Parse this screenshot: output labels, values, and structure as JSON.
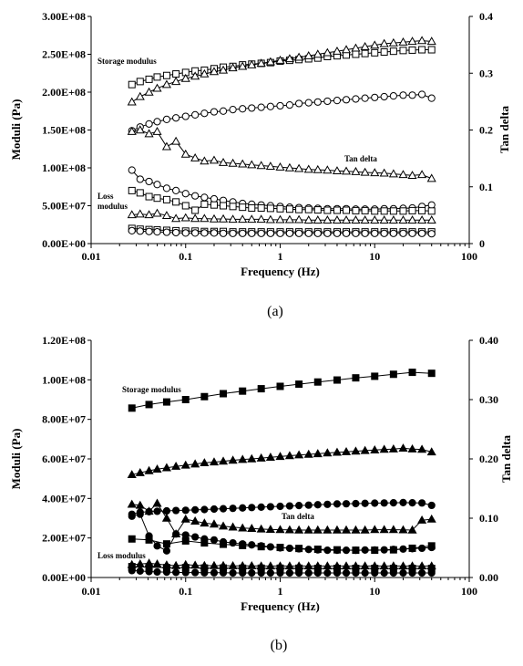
{
  "chart_data": [
    {
      "type": "scatter",
      "caption": "(a)",
      "xlabel": "Frequency (Hz)",
      "ylabel_left": "Moduli (Pa)",
      "ylabel_right": "Tan delta",
      "x_scale": "log",
      "xlim": [
        0.01,
        100
      ],
      "ylim_left": [
        0,
        300000000
      ],
      "ylim_right": [
        0,
        0.4
      ],
      "x_ticks": [
        "0.01",
        "0.1",
        "1",
        "10",
        "100"
      ],
      "y_left_ticks": [
        "0.00E+00",
        "5.00E+07",
        "1.00E+08",
        "1.50E+08",
        "2.00E+08",
        "2.50E+08",
        "3.00E+08"
      ],
      "y_right_ticks": [
        "0",
        "0.1",
        "0.2",
        "0.3",
        "0.4"
      ],
      "grid": false,
      "annotations": [
        "Storage modulus",
        "Tan delta",
        "Loss",
        "modulus"
      ],
      "x": [
        0.027,
        0.033,
        0.041,
        0.05,
        0.063,
        0.079,
        0.1,
        0.126,
        0.158,
        0.2,
        0.25,
        0.316,
        0.4,
        0.5,
        0.63,
        0.79,
        1.0,
        1.26,
        1.58,
        2.0,
        2.5,
        3.16,
        4.0,
        5.0,
        6.3,
        7.9,
        10.0,
        12.6,
        15.8,
        20.0,
        25.0,
        31.6,
        40.0
      ],
      "series": [
        {
          "axis": "left",
          "marker": "square-open",
          "line": true,
          "values": [
            210000000,
            214000000,
            217000000,
            220000000,
            222000000,
            224000000,
            226000000,
            228000000,
            229000000,
            231000000,
            233000000,
            234000000,
            236000000,
            237000000,
            238000000,
            239000000,
            241000000,
            242000000,
            243000000,
            244000000,
            245000000,
            247000000,
            248000000,
            249000000,
            250000000,
            251000000,
            252000000,
            253000000,
            254000000,
            255000000,
            255500000,
            256000000,
            256000000
          ]
        },
        {
          "axis": "left",
          "marker": "triangle-open",
          "line": true,
          "values": [
            187000000,
            194000000,
            200000000,
            205000000,
            210000000,
            214000000,
            218000000,
            221000000,
            224000000,
            227000000,
            229000000,
            232000000,
            234000000,
            236000000,
            238000000,
            240000000,
            242000000,
            244000000,
            246000000,
            248000000,
            250000000,
            252000000,
            254000000,
            256000000,
            258000000,
            260000000,
            262000000,
            264000000,
            265000000,
            266000000,
            267000000,
            268000000,
            267000000
          ]
        },
        {
          "axis": "left",
          "marker": "circle-open",
          "line": true,
          "values": [
            149000000,
            154000000,
            158000000,
            161000000,
            164000000,
            166000000,
            168000000,
            170000000,
            172000000,
            174000000,
            175000000,
            177000000,
            178000000,
            179000000,
            180000000,
            181000000,
            182000000,
            183000000,
            185000000,
            186000000,
            187000000,
            188000000,
            189000000,
            190000000,
            191000000,
            192000000,
            193000000,
            194000000,
            195000000,
            196000000,
            196000000,
            197000000,
            192000000
          ]
        },
        {
          "axis": "left",
          "marker": "triangle-open",
          "line": true,
          "values": [
            148000000,
            150000000,
            145000000,
            148000000,
            128000000,
            135000000,
            118000000,
            113000000,
            109000000,
            110000000,
            107000000,
            106000000,
            105000000,
            104000000,
            103000000,
            102000000,
            101000000,
            100000000,
            99000000,
            98000000,
            97500000,
            97000000,
            96000000,
            95500000,
            95000000,
            94000000,
            93500000,
            93000000,
            92000000,
            91000000,
            90000000,
            91000000,
            86000000
          ]
        },
        {
          "axis": "left",
          "marker": "circle-open",
          "line": true,
          "values": [
            97000000,
            85000000,
            82000000,
            78000000,
            73000000,
            70000000,
            66000000,
            63000000,
            61000000,
            59000000,
            57000000,
            55000000,
            53000000,
            52000000,
            51000000,
            50000000,
            49000000,
            48000000,
            47500000,
            47000000,
            46500000,
            46000000,
            46000000,
            46000000,
            45500000,
            45500000,
            45500000,
            46000000,
            46000000,
            46500000,
            47000000,
            49000000,
            51000000
          ]
        },
        {
          "axis": "left",
          "marker": "square-open",
          "line": true,
          "values": [
            70000000,
            67000000,
            62000000,
            60000000,
            58000000,
            55000000,
            50000000,
            44000000,
            52000000,
            51000000,
            50000000,
            49000000,
            48000000,
            47000000,
            47000000,
            46500000,
            46000000,
            45500000,
            45000000,
            45000000,
            44500000,
            44000000,
            44000000,
            44000000,
            43500000,
            43500000,
            43000000,
            43000000,
            43000000,
            43000000,
            43500000,
            43500000,
            43000000
          ]
        },
        {
          "axis": "left",
          "marker": "triangle-open",
          "line": true,
          "values": [
            38000000,
            39000000,
            38000000,
            40000000,
            37000000,
            33000000,
            34000000,
            33000000,
            33000000,
            32500000,
            32500000,
            32000000,
            32000000,
            32000000,
            32000000,
            31500000,
            31500000,
            31500000,
            31500000,
            31000000,
            31000000,
            31000000,
            31000000,
            31000000,
            31000000,
            31000000,
            31000000,
            31000000,
            31000000,
            31000000,
            31000000,
            31000000,
            31000000
          ]
        },
        {
          "axis": "left",
          "marker": "square-open",
          "line": true,
          "values": [
            20000000,
            19000000,
            18500000,
            18000000,
            17500000,
            17000000,
            16500000,
            16500000,
            16000000,
            16000000,
            16000000,
            15500000,
            15500000,
            15500000,
            15500000,
            15500000,
            15500000,
            15500000,
            15500000,
            15500000,
            15500000,
            15500000,
            15500000,
            15500000,
            15500000,
            15500000,
            15500000,
            15500000,
            15500000,
            15500000,
            15500000,
            15500000,
            15500000
          ]
        },
        {
          "axis": "left",
          "marker": "circle-open",
          "line": true,
          "values": [
            17000000,
            16500000,
            16000000,
            15500000,
            15000000,
            14500000,
            14000000,
            14000000,
            14000000,
            14000000,
            13500000,
            13500000,
            13500000,
            13500000,
            13500000,
            13500000,
            13500000,
            13500000,
            13500000,
            13500000,
            13500000,
            13500000,
            13500000,
            13500000,
            13500000,
            13500000,
            13500000,
            13500000,
            13500000,
            13500000,
            13500000,
            13500000,
            13000000
          ]
        }
      ]
    },
    {
      "type": "scatter",
      "caption": "(b)",
      "xlabel": "Frequency (Hz)",
      "ylabel_left": "Moduli (Pa)",
      "ylabel_right": "Tan delta",
      "x_scale": "log",
      "xlim": [
        0.01,
        100
      ],
      "ylim_left": [
        0,
        120000000
      ],
      "ylim_right": [
        0,
        0.4
      ],
      "x_ticks": [
        "0.01",
        "0.1",
        "1",
        "10",
        "100"
      ],
      "y_left_ticks": [
        "0.00E+00",
        "2.00E+07",
        "4.00E+07",
        "6.00E+07",
        "8.00E+07",
        "1.00E+08",
        "1.20E+08"
      ],
      "y_right_ticks": [
        "0.00",
        "0.10",
        "0.20",
        "0.30",
        "0.40"
      ],
      "grid": false,
      "annotations": [
        "Storage modulus",
        "Tan delta",
        "Loss modulus"
      ],
      "x": [
        0.027,
        0.041,
        0.063,
        0.1,
        0.158,
        0.25,
        0.4,
        0.63,
        1.0,
        1.58,
        2.5,
        4.0,
        6.3,
        10.0,
        15.8,
        25.0,
        40.0
      ],
      "x_dense": [
        0.027,
        0.033,
        0.041,
        0.05,
        0.063,
        0.079,
        0.1,
        0.126,
        0.158,
        0.2,
        0.25,
        0.316,
        0.4,
        0.5,
        0.63,
        0.79,
        1.0,
        1.26,
        1.58,
        2.0,
        2.5,
        3.16,
        4.0,
        5.0,
        6.3,
        7.9,
        10.0,
        12.6,
        15.8,
        20.0,
        25.0,
        31.6,
        40.0
      ],
      "series": [
        {
          "axis": "left",
          "marker": "square-filled",
          "line": true,
          "x_key": "x",
          "values": [
            85700000,
            87500000,
            88800000,
            90000000,
            91500000,
            93000000,
            94300000,
            95500000,
            96700000,
            97800000,
            98900000,
            99900000,
            101000000,
            101800000,
            102800000,
            103800000,
            103300000
          ]
        },
        {
          "axis": "left",
          "marker": "triangle-filled",
          "line": true,
          "x_key": "x_dense",
          "values": [
            52000000,
            53000000,
            54000000,
            54800000,
            55500000,
            56200000,
            56800000,
            57400000,
            58000000,
            58400000,
            58800000,
            59300000,
            59700000,
            60000000,
            60400000,
            60800000,
            61200000,
            61600000,
            62000000,
            62300000,
            62600000,
            63000000,
            63300000,
            63600000,
            63900000,
            64200000,
            64500000,
            64800000,
            65000000,
            65400000,
            65000000,
            64800000,
            63500000
          ]
        },
        {
          "axis": "left",
          "marker": "circle-filled",
          "line": true,
          "x_key": "x_dense",
          "values": [
            32000000,
            33000000,
            33300000,
            33500000,
            33700000,
            33900000,
            34000000,
            34200000,
            34400000,
            34600000,
            34800000,
            35000000,
            35200000,
            35400000,
            35600000,
            35800000,
            36000000,
            36200000,
            36400000,
            36600000,
            36800000,
            37000000,
            37200000,
            37300000,
            37400000,
            37500000,
            37600000,
            37700000,
            37800000,
            37900000,
            37800000,
            37700000,
            36500000
          ]
        },
        {
          "axis": "left",
          "marker": "triangle-filled",
          "line": true,
          "x_key": "x_dense",
          "values": [
            37000000,
            36500000,
            33500000,
            37500000,
            30000000,
            22000000,
            29500000,
            28500000,
            27500000,
            27000000,
            26000000,
            25500000,
            25000000,
            24800000,
            24500000,
            24300000,
            24200000,
            24100000,
            24000000,
            24000000,
            24000000,
            24000000,
            24000000,
            24000000,
            24000000,
            24000000,
            24200000,
            24200000,
            24200000,
            24100000,
            24000000,
            29000000,
            29500000
          ]
        },
        {
          "axis": "left",
          "marker": "circle-filled",
          "line": true,
          "x_key": "x_dense",
          "values": [
            31000000,
            32000000,
            21000000,
            16000000,
            13500000,
            22000000,
            21500000,
            20500000,
            19500000,
            19000000,
            18000000,
            17500000,
            17000000,
            16500000,
            16000000,
            15500000,
            15000000,
            14800000,
            14500000,
            14200000,
            14000000,
            13800000,
            13800000,
            13800000,
            13800000,
            13900000,
            13900000,
            14000000,
            14200000,
            14400000,
            14600000,
            14800000,
            15200000
          ]
        },
        {
          "axis": "left",
          "marker": "square-filled",
          "line": true,
          "x_key": "x",
          "values": [
            19500000,
            19000000,
            17000000,
            18500000,
            17500000,
            16800000,
            16200000,
            15600000,
            15200000,
            14700000,
            14300000,
            14000000,
            13800000,
            13800000,
            14000000,
            14800000,
            16000000
          ]
        },
        {
          "axis": "left",
          "marker": "triangle-filled",
          "line": true,
          "x_key": "x_dense",
          "values": [
            6500000,
            6800000,
            7200000,
            6800000,
            6300000,
            6000000,
            6500000,
            6200000,
            6000000,
            6000000,
            6000000,
            5900000,
            5900000,
            5900000,
            5800000,
            5800000,
            5800000,
            5800000,
            5800000,
            5800000,
            5800000,
            5800000,
            5800000,
            5800000,
            5800000,
            5800000,
            5800000,
            5800000,
            5800000,
            5800000,
            5800000,
            5800000,
            5800000
          ]
        },
        {
          "axis": "left",
          "marker": "square-filled",
          "line": true,
          "x_key": "x",
          "values": [
            5500000,
            5200000,
            5000000,
            5000000,
            4800000,
            4800000,
            4700000,
            4700000,
            4700000,
            4700000,
            4600000,
            4600000,
            4600000,
            4600000,
            4600000,
            4600000,
            4600000
          ]
        },
        {
          "axis": "left",
          "marker": "circle-filled",
          "line": true,
          "x_key": "x_dense",
          "values": [
            3500000,
            3300000,
            3000000,
            2800000,
            2700000,
            2600000,
            2500000,
            2500000,
            2400000,
            2400000,
            2400000,
            2300000,
            2300000,
            2300000,
            2300000,
            2300000,
            2300000,
            2300000,
            2300000,
            2300000,
            2300000,
            2300000,
            2300000,
            2300000,
            2300000,
            2300000,
            2300000,
            2300000,
            2300000,
            2300000,
            2300000,
            2300000,
            2300000
          ]
        }
      ]
    }
  ]
}
